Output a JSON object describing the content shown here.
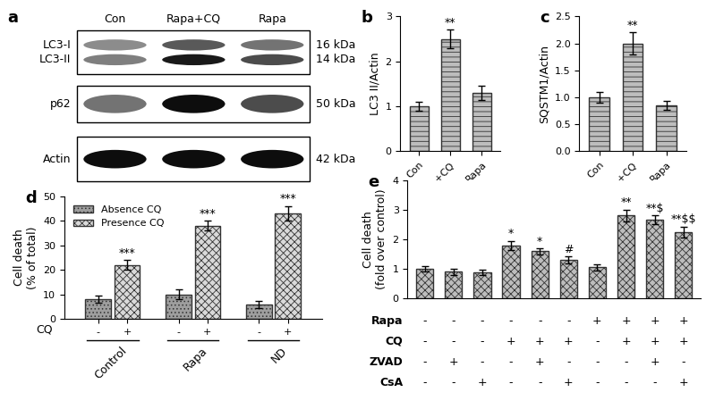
{
  "chart_data": [
    {
      "type": "blot",
      "panel": "a",
      "lanes": [
        "Con",
        "Rapa+CQ",
        "Rapa"
      ],
      "blots": [
        {
          "bands": [
            {
              "label": "LC3-I",
              "size": "16 kDa",
              "intensity": [
                0.45,
                0.65,
                0.55
              ]
            },
            {
              "label": "LC3-II",
              "size": "14 kDa",
              "intensity": [
                0.5,
                0.9,
                0.7
              ]
            }
          ]
        },
        {
          "bands": [
            {
              "label": "p62",
              "size": "50 kDa",
              "intensity": [
                0.55,
                0.95,
                0.7
              ]
            }
          ]
        },
        {
          "bands": [
            {
              "label": "Actin",
              "size": "42 kDa",
              "intensity": [
                0.95,
                0.95,
                0.95
              ]
            }
          ]
        }
      ]
    },
    {
      "type": "bar",
      "panel": "b",
      "y_label": "LC3 II/Actin",
      "categories": [
        "Con",
        "Rapa+CQ",
        "Rapa"
      ],
      "values": [
        1.0,
        2.5,
        1.3
      ],
      "errors": [
        0.1,
        0.2,
        0.15
      ],
      "annotations": [
        null,
        "**",
        null
      ],
      "color": "#bdbdbd",
      "ylim": [
        0,
        3
      ],
      "yticks": [
        0,
        1,
        2,
        3
      ]
    },
    {
      "type": "bar",
      "panel": "c",
      "y_label": "SQSTM1/Actin",
      "categories": [
        "Con",
        "Rapa+CQ",
        "Rapa"
      ],
      "values": [
        1.0,
        2.0,
        0.85
      ],
      "errors": [
        0.1,
        0.2,
        0.08
      ],
      "annotations": [
        null,
        "**",
        null
      ],
      "color": "#bdbdbd",
      "ylim": [
        0,
        2.5
      ],
      "yticks": [
        {
          "value": 0,
          "label": "0.0"
        },
        {
          "value": 0.5,
          "label": "0.5"
        },
        {
          "value": 1.0,
          "label": "1.0"
        },
        {
          "value": 1.5,
          "label": "1.5"
        },
        {
          "value": 2.0,
          "label": "2.0"
        },
        {
          "value": 2.5,
          "label": "2.5"
        }
      ]
    },
    {
      "type": "bar",
      "panel": "d",
      "y_label": "Cell death\n(% of total)",
      "x_row_label": "CQ",
      "categories": [
        "Control",
        "Rapa",
        "ND"
      ],
      "legend": "upper left",
      "series": [
        {
          "name": "Absence CQ",
          "tick_label": "-",
          "color": "#9e9e9e",
          "values": [
            8,
            10,
            6
          ],
          "errors": [
            1.5,
            2,
            1.5
          ],
          "annotations": [
            null,
            null,
            null
          ]
        },
        {
          "name": "Presence CQ",
          "tick_label": "+",
          "color": "#d9d9d9",
          "values": [
            22,
            38,
            43
          ],
          "errors": [
            2,
            2,
            3
          ],
          "annotations": [
            "***",
            "***",
            "***"
          ]
        }
      ],
      "ylim": [
        0,
        50
      ],
      "yticks": [
        0,
        10,
        20,
        30,
        40,
        50
      ]
    },
    {
      "type": "bar",
      "panel": "e",
      "y_label": "Cell death\n(fold over control)",
      "tick_labels": "y",
      "categories": [
        null,
        null,
        null,
        null,
        null,
        null,
        null,
        null,
        null,
        null
      ],
      "values": [
        1.0,
        0.9,
        0.88,
        1.8,
        1.6,
        1.3,
        1.05,
        2.8,
        2.65,
        2.25
      ],
      "errors": [
        0.1,
        0.1,
        0.08,
        0.15,
        0.1,
        0.12,
        0.1,
        0.2,
        0.15,
        0.18
      ],
      "annotations": [
        null,
        null,
        null,
        "*",
        "*",
        "#",
        null,
        "**",
        "**$",
        "**$$"
      ],
      "conditions": [
        {
          "name": "Rapa",
          "values": [
            "-",
            "-",
            "-",
            "-",
            "-",
            "-",
            "+",
            "+",
            "+",
            "+"
          ]
        },
        {
          "name": "CQ",
          "values": [
            "-",
            "-",
            "-",
            "+",
            "+",
            "+",
            "-",
            "+",
            "+",
            "+"
          ]
        },
        {
          "name": "ZVAD",
          "values": [
            "-",
            "+",
            "-",
            "-",
            "+",
            "-",
            "-",
            "-",
            "+",
            "-"
          ]
        },
        {
          "name": "CsA",
          "values": [
            "-",
            "-",
            "+",
            "-",
            "-",
            "+",
            "-",
            "-",
            "-",
            "+"
          ]
        }
      ],
      "color": "#bdbdbd",
      "ylim": [
        0,
        4
      ],
      "yticks": [
        0,
        1,
        2,
        3,
        4
      ]
    }
  ]
}
